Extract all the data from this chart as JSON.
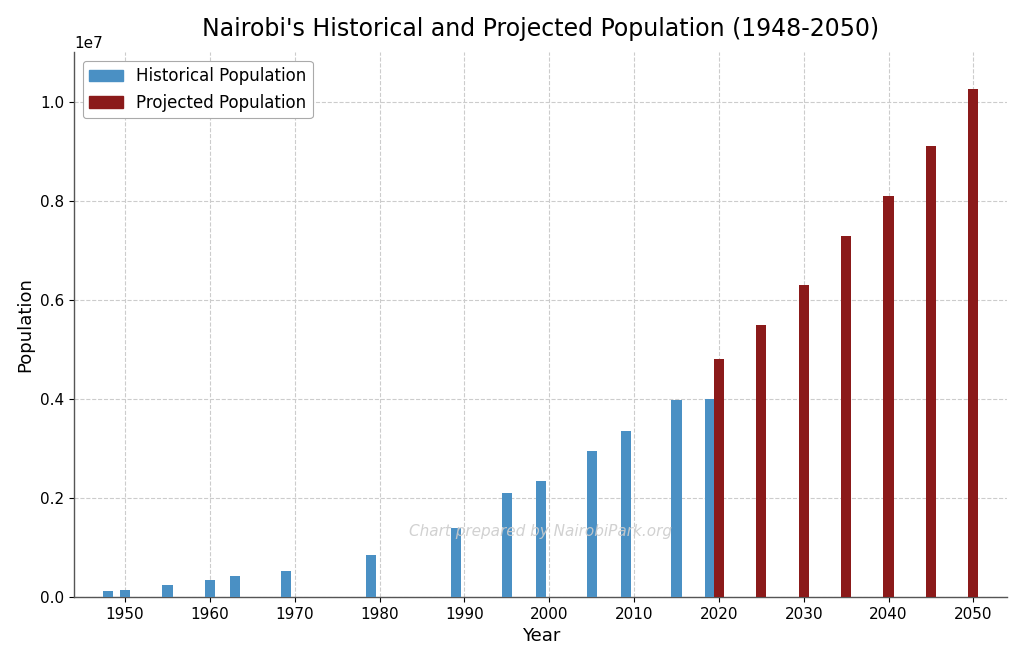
{
  "title": "Nairobi's Historical and Projected Population (1948-2050)",
  "xlabel": "Year",
  "ylabel": "Population",
  "historical": {
    "years": [
      1948,
      1950,
      1955,
      1960,
      1963,
      1969,
      1979,
      1989,
      1995,
      1999,
      2005,
      2009,
      2015,
      2019
    ],
    "populations": [
      118976,
      136000,
      250000,
      350000,
      430000,
      535000,
      850000,
      1400000,
      2100000,
      2350000,
      2950000,
      3350000,
      3980000,
      4000000
    ]
  },
  "projected": {
    "years": [
      2020,
      2025,
      2030,
      2035,
      2040,
      2045,
      2050
    ],
    "populations": [
      4800000,
      5500000,
      6300000,
      7300000,
      8100000,
      9100000,
      10250000
    ]
  },
  "historical_color": "#4a90c4",
  "projected_color": "#8b1a1a",
  "background_color": "#ffffff",
  "grid_color": "#cccccc",
  "watermark": "Chart prepared by NairobiPark.org",
  "ylim": [
    0,
    11000000
  ],
  "bar_width": 1.2,
  "title_fontsize": 17,
  "axis_fontsize": 13,
  "tick_fontsize": 11,
  "legend_fontsize": 12
}
